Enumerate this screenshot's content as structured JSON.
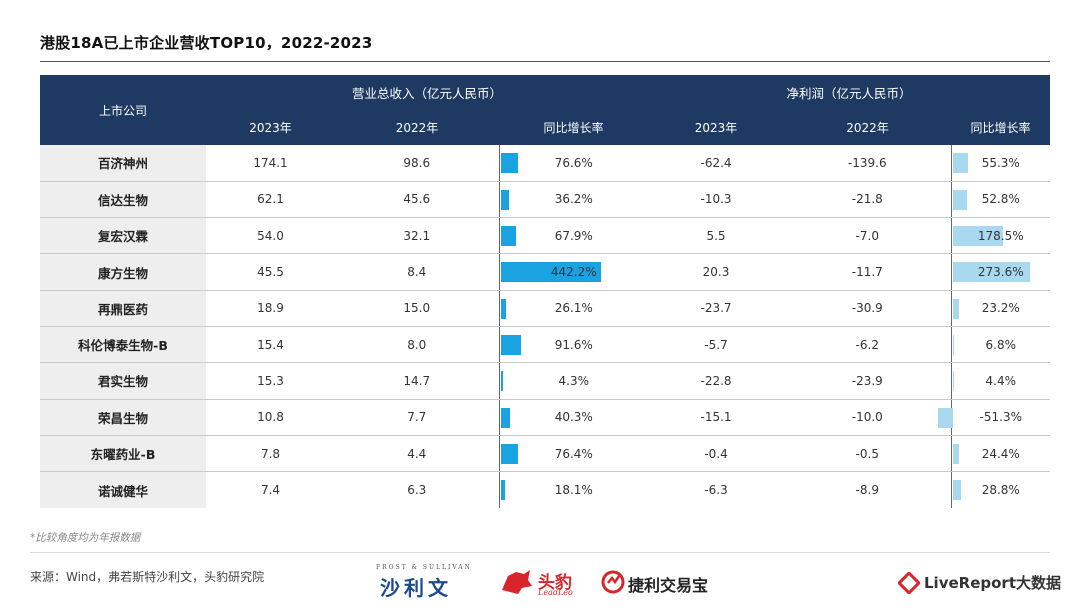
{
  "title": "港股18A已上市企业营收TOP10，2022-2023",
  "table": {
    "header_company": "上市公司",
    "header_revenue": "营业总收入（亿元人民币）",
    "header_profit": "净利润（亿元人民币）",
    "sub_2023": "2023年",
    "sub_2022": "2022年",
    "sub_yoy": "同比增长率"
  },
  "chart_data": {
    "type": "table",
    "title": "港股18A已上市企业营收TOP10，2022-2023",
    "columns": [
      "上市公司",
      "营业总收入 2023年",
      "营业总收入 2022年",
      "营业总收入 同比增长率",
      "净利润 2023年",
      "净利润 2022年",
      "净利润 同比增长率"
    ],
    "rows": [
      {
        "company": "百济神州",
        "rev_2023": "174.1",
        "rev_2022": "98.6",
        "rev_yoy": "76.6%",
        "rev_yoy_value": 76.6,
        "np_2023": "-62.4",
        "np_2022": "-139.6",
        "np_yoy": "55.3%",
        "np_yoy_value": 55.3
      },
      {
        "company": "信达生物",
        "rev_2023": "62.1",
        "rev_2022": "45.6",
        "rev_yoy": "36.2%",
        "rev_yoy_value": 36.2,
        "np_2023": "-10.3",
        "np_2022": "-21.8",
        "np_yoy": "52.8%",
        "np_yoy_value": 52.8
      },
      {
        "company": "复宏汉霖",
        "rev_2023": "54.0",
        "rev_2022": "32.1",
        "rev_yoy": "67.9%",
        "rev_yoy_value": 67.9,
        "np_2023": "5.5",
        "np_2022": "-7.0",
        "np_yoy": "178.5%",
        "np_yoy_value": 178.5
      },
      {
        "company": "康方生物",
        "rev_2023": "45.5",
        "rev_2022": "8.4",
        "rev_yoy": "442.2%",
        "rev_yoy_value": 442.2,
        "np_2023": "20.3",
        "np_2022": "-11.7",
        "np_yoy": "273.6%",
        "np_yoy_value": 273.6
      },
      {
        "company": "再鼎医药",
        "rev_2023": "18.9",
        "rev_2022": "15.0",
        "rev_yoy": "26.1%",
        "rev_yoy_value": 26.1,
        "np_2023": "-23.7",
        "np_2022": "-30.9",
        "np_yoy": "23.2%",
        "np_yoy_value": 23.2
      },
      {
        "company": "科伦博泰生物-B",
        "rev_2023": "15.4",
        "rev_2022": "8.0",
        "rev_yoy": "91.6%",
        "rev_yoy_value": 91.6,
        "np_2023": "-5.7",
        "np_2022": "-6.2",
        "np_yoy": "6.8%",
        "np_yoy_value": 6.8
      },
      {
        "company": "君实生物",
        "rev_2023": "15.3",
        "rev_2022": "14.7",
        "rev_yoy": "4.3%",
        "rev_yoy_value": 4.3,
        "np_2023": "-22.8",
        "np_2022": "-23.9",
        "np_yoy": "4.4%",
        "np_yoy_value": 4.4
      },
      {
        "company": "荣昌生物",
        "rev_2023": "10.8",
        "rev_2022": "7.7",
        "rev_yoy": "40.3%",
        "rev_yoy_value": 40.3,
        "np_2023": "-15.1",
        "np_2022": "-10.0",
        "np_yoy": "-51.3%",
        "np_yoy_value": -51.3
      },
      {
        "company": "东曜药业-B",
        "rev_2023": "7.8",
        "rev_2022": "4.4",
        "rev_yoy": "76.4%",
        "rev_yoy_value": 76.4,
        "np_2023": "-0.4",
        "np_2022": "-0.5",
        "np_yoy": "24.4%",
        "np_yoy_value": 24.4
      },
      {
        "company": "诺诚健华",
        "rev_2023": "7.4",
        "rev_2022": "6.3",
        "rev_yoy": "18.1%",
        "rev_yoy_value": 18.1,
        "np_2023": "-6.3",
        "np_2022": "-8.9",
        "np_yoy": "28.8%",
        "np_yoy_value": 28.8
      }
    ]
  },
  "colors": {
    "header_bg": "#1e3a63",
    "revenue_bar": "#1aa3e0",
    "profit_bar": "#a9d9ef",
    "company_bg": "#eeeeee"
  },
  "footnote": "*比较角度均为年报数据",
  "source": "来源：Wind，弗若斯特沙利文，头豹研究院",
  "logos": {
    "frost_small": "FROST & SULLIVAN",
    "frost_big": "沙利文",
    "leadleo_big": "头豹",
    "leadleo_small": "LeadLeo",
    "jieli": "捷利交易宝",
    "livereport": "LiveReport大数据"
  }
}
